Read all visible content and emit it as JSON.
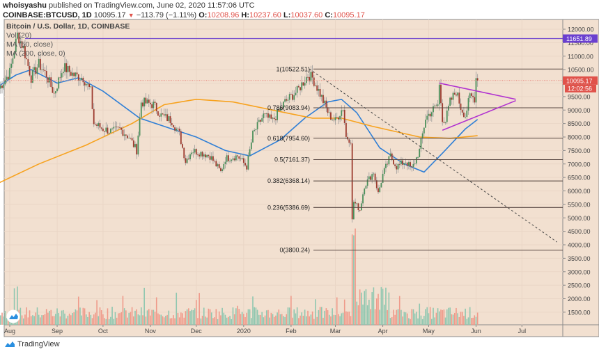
{
  "header": {
    "author": "whoisyashu",
    "published_text": "published on TradingView.com, June 02, 2020 11:57:06 UTC",
    "symbol": "COINBASE:BTCUSD, 1D",
    "last": "10095.17",
    "change_arrow": "▼",
    "change": "−113.79 (−1.11%)",
    "o_label": "O:",
    "o": "10208.96",
    "h_label": "H:",
    "h": "10237.60",
    "l_label": "L:",
    "l": "10037.60",
    "c_label": "C:",
    "c": "10095.17"
  },
  "legend": {
    "title": "Bitcoin / U.S. Dollar, 1D, COINBASE",
    "vol": "Vol (20)",
    "ma1": "MA (50, close)",
    "ma2": "MA (200, close, 0)"
  },
  "footer": {
    "brand": "TradingView"
  },
  "colors": {
    "background": "#f2e0d0",
    "up": "#4a8f5a",
    "down": "#9c3a2e",
    "vol_up": "#8fc7b0",
    "vol_down": "#ef9a8a",
    "ma50": "#2f7fd6",
    "ma200": "#f7a21e",
    "triangle": "#b030d0",
    "horizontal_line": "#6a3fcf",
    "fib_line": "#5a4a44",
    "price_badge": "#e0524a",
    "hline_badge": "#6a3fcf"
  },
  "chart_data": {
    "type": "candlestick",
    "title": "Bitcoin / U.S. Dollar, 1D, COINBASE",
    "xlabel": "",
    "ylabel": "",
    "ylim": [
      1000,
      12300
    ],
    "grid": true,
    "x_ticks": [
      "Aug",
      "Sep",
      "Oct",
      "Nov",
      "Dec",
      "2020",
      "Feb",
      "Mar",
      "Apr",
      "May",
      "Jun",
      "Jul"
    ],
    "y_ticks": [
      "12000.00",
      "11500.00",
      "11000.00",
      "10500.00",
      "10000.00",
      "9500.00",
      "9000.00",
      "8500.00",
      "8000.00",
      "7500.00",
      "7000.00",
      "6500.00",
      "6000.00",
      "5500.00",
      "5000.00",
      "4500.00",
      "4000.00",
      "3500.00",
      "3000.00",
      "2500.00",
      "2000.00",
      "1500.00"
    ],
    "current_price": "10095.17",
    "countdown": "12:02:56",
    "horizontal_line": {
      "value": 11651.89,
      "label": "11651.89"
    },
    "fib_levels": [
      {
        "ratio": "1",
        "price": 10522.51,
        "label": "1(10522.51)"
      },
      {
        "ratio": "0.786",
        "price": 9083.94,
        "label": "0.786(9083.94)"
      },
      {
        "ratio": "0.618",
        "price": 7954.6,
        "label": "0.618(7954.60)"
      },
      {
        "ratio": "0.5",
        "price": 7161.37,
        "label": "0.5(7161.37)"
      },
      {
        "ratio": "0.382",
        "price": 6368.14,
        "label": "0.382(6368.14)"
      },
      {
        "ratio": "0.236",
        "price": 5386.69,
        "label": "0.236(5386.69)"
      },
      {
        "ratio": "0",
        "price": 3800.24,
        "label": "0(3800.24)"
      }
    ],
    "close_path": [
      [
        "2019-07-25",
        9800
      ],
      [
        "2019-08-01",
        10400
      ],
      [
        "2019-08-06",
        11800
      ],
      [
        "2019-08-10",
        11300
      ],
      [
        "2019-08-15",
        10200
      ],
      [
        "2019-08-20",
        10700
      ],
      [
        "2019-08-25",
        10300
      ],
      [
        "2019-08-30",
        9600
      ],
      [
        "2019-09-05",
        10600
      ],
      [
        "2019-09-12",
        10300
      ],
      [
        "2019-09-18",
        10200
      ],
      [
        "2019-09-23",
        9700
      ],
      [
        "2019-09-25",
        8500
      ],
      [
        "2019-10-01",
        8300
      ],
      [
        "2019-10-07",
        8200
      ],
      [
        "2019-10-12",
        8300
      ],
      [
        "2019-10-18",
        8000
      ],
      [
        "2019-10-23",
        7500
      ],
      [
        "2019-10-25",
        8700
      ],
      [
        "2019-10-26",
        9300
      ],
      [
        "2019-11-03",
        9200
      ],
      [
        "2019-11-08",
        8800
      ],
      [
        "2019-11-15",
        8600
      ],
      [
        "2019-11-20",
        8100
      ],
      [
        "2019-11-24",
        7100
      ],
      [
        "2019-11-28",
        7500
      ],
      [
        "2019-12-05",
        7400
      ],
      [
        "2019-12-10",
        7300
      ],
      [
        "2019-12-17",
        6700
      ],
      [
        "2019-12-20",
        7200
      ],
      [
        "2019-12-28",
        7300
      ],
      [
        "2020-01-03",
        6900
      ],
      [
        "2020-01-07",
        8100
      ],
      [
        "2020-01-14",
        8800
      ],
      [
        "2020-01-20",
        8600
      ],
      [
        "2020-01-28",
        9300
      ],
      [
        "2020-02-05",
        9700
      ],
      [
        "2020-02-12",
        10300
      ],
      [
        "2020-02-15",
        10200
      ],
      [
        "2020-02-20",
        9600
      ],
      [
        "2020-02-26",
        8800
      ],
      [
        "2020-03-01",
        8600
      ],
      [
        "2020-03-06",
        9100
      ],
      [
        "2020-03-08",
        8000
      ],
      [
        "2020-03-11",
        7900
      ],
      [
        "2020-03-12",
        4900
      ],
      [
        "2020-03-13",
        5600
      ],
      [
        "2020-03-17",
        5300
      ],
      [
        "2020-03-20",
        6200
      ],
      [
        "2020-03-26",
        6700
      ],
      [
        "2020-03-29",
        5900
      ],
      [
        "2020-04-01",
        6600
      ],
      [
        "2020-04-06",
        7300
      ],
      [
        "2020-04-10",
        6900
      ],
      [
        "2020-04-16",
        7100
      ],
      [
        "2020-04-20",
        6800
      ],
      [
        "2020-04-25",
        7500
      ],
      [
        "2020-04-29",
        8700
      ],
      [
        "2020-05-02",
        8900
      ],
      [
        "2020-05-07",
        9200
      ],
      [
        "2020-05-08",
        9900
      ],
      [
        "2020-05-10",
        8700
      ],
      [
        "2020-05-12",
        8600
      ],
      [
        "2020-05-15",
        9300
      ],
      [
        "2020-05-19",
        9700
      ],
      [
        "2020-05-22",
        9100
      ],
      [
        "2020-05-25",
        8800
      ],
      [
        "2020-05-28",
        9500
      ],
      [
        "2020-05-31",
        9450
      ],
      [
        "2020-06-01",
        10200
      ],
      [
        "2020-06-02",
        10095
      ]
    ],
    "series": [
      {
        "name": "MA (50, close)",
        "color": "#2f7fd6",
        "points": [
          [
            "2019-07-25",
            9900
          ],
          [
            "2019-08-05",
            10300
          ],
          [
            "2019-08-15",
            10500
          ],
          [
            "2019-09-01",
            10000
          ],
          [
            "2019-09-15",
            10200
          ],
          [
            "2019-10-01",
            9700
          ],
          [
            "2019-10-25",
            8700
          ],
          [
            "2019-11-15",
            8300
          ],
          [
            "2019-12-01",
            8000
          ],
          [
            "2019-12-20",
            7500
          ],
          [
            "2020-01-05",
            7300
          ],
          [
            "2020-01-25",
            7900
          ],
          [
            "2020-02-10",
            8700
          ],
          [
            "2020-02-25",
            9300
          ],
          [
            "2020-03-05",
            9400
          ],
          [
            "2020-03-15",
            8900
          ],
          [
            "2020-03-30",
            7600
          ],
          [
            "2020-04-15",
            7000
          ],
          [
            "2020-04-28",
            6700
          ],
          [
            "2020-05-10",
            7400
          ],
          [
            "2020-05-25",
            8300
          ],
          [
            "2020-06-02",
            8650
          ]
        ]
      },
      {
        "name": "MA (200, close, 0)",
        "color": "#f7a21e",
        "points": [
          [
            "2019-07-25",
            6300
          ],
          [
            "2019-08-20",
            7000
          ],
          [
            "2019-09-20",
            7700
          ],
          [
            "2019-10-20",
            8500
          ],
          [
            "2019-11-10",
            9200
          ],
          [
            "2019-12-01",
            9400
          ],
          [
            "2019-12-25",
            9300
          ],
          [
            "2020-01-20",
            9000
          ],
          [
            "2020-02-15",
            8700
          ],
          [
            "2020-03-05",
            8700
          ],
          [
            "2020-03-25",
            8400
          ],
          [
            "2020-04-25",
            8000
          ],
          [
            "2020-05-15",
            7950
          ],
          [
            "2020-06-02",
            8050
          ]
        ]
      }
    ],
    "drawings": {
      "triangle_upper": [
        [
          "2020-05-08",
          10000
        ],
        [
          "2020-06-27",
          9400
        ]
      ],
      "triangle_lower": [
        [
          "2020-05-10",
          8250
        ],
        [
          "2020-06-27",
          9350
        ]
      ],
      "descending_trendline": [
        [
          "2020-02-13",
          10522
        ],
        [
          "2020-07-24",
          4100
        ]
      ]
    }
  }
}
